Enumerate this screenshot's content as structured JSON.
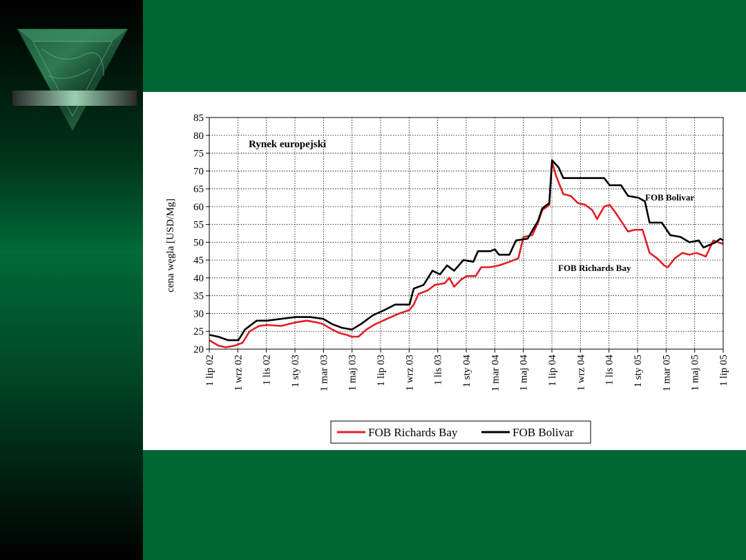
{
  "slide": {
    "colors": {
      "background": "#006633",
      "panel": "#ffffff",
      "accent": "#e31e24"
    },
    "logo_icon": "green-marble-triangle-icon"
  },
  "chart_data": {
    "type": "line",
    "title": "Rynek europejski",
    "xlabel": "",
    "ylabel": "cena węgla [USD/Mg]",
    "ylim": [
      20,
      85
    ],
    "yticks": [
      20,
      25,
      30,
      35,
      40,
      45,
      50,
      55,
      60,
      65,
      70,
      75,
      80,
      85
    ],
    "xticks": [
      "1 lip 02",
      "1 wrz 02",
      "1 lis 02",
      "1 sty 03",
      "1 mar 03",
      "1 maj 03",
      "1 lip 03",
      "1 wrz 03",
      "1 lis 03",
      "1 sty 04",
      "1 mar 04",
      "1 maj 04",
      "1 lip 04",
      "1 wrz 04",
      "1 lis 04",
      "1 sty 05",
      "1 mar 05",
      "1 maj 05",
      "1 lip 05"
    ],
    "grid": true,
    "legend_position": "bottom",
    "series": [
      {
        "name": "FOB Richards Bay",
        "color": "#e31e24",
        "label": "FOB Richards Bay",
        "points": [
          [
            "2002-07-01",
            22.5
          ],
          [
            "2002-07-20",
            21.0
          ],
          [
            "2002-08-05",
            20.5
          ],
          [
            "2002-08-25",
            21.0
          ],
          [
            "2002-09-10",
            21.8
          ],
          [
            "2002-09-25",
            25.0
          ],
          [
            "2002-10-15",
            26.5
          ],
          [
            "2002-11-01",
            26.8
          ],
          [
            "2002-12-01",
            26.5
          ],
          [
            "2003-01-01",
            27.5
          ],
          [
            "2003-01-25",
            28.0
          ],
          [
            "2003-02-15",
            27.5
          ],
          [
            "2003-03-01",
            27.0
          ],
          [
            "2003-03-20",
            25.5
          ],
          [
            "2003-04-05",
            24.5
          ],
          [
            "2003-04-20",
            24.0
          ],
          [
            "2003-05-01",
            23.5
          ],
          [
            "2003-05-15",
            23.5
          ],
          [
            "2003-06-01",
            25.5
          ],
          [
            "2003-06-20",
            27.0
          ],
          [
            "2003-07-15",
            28.5
          ],
          [
            "2003-08-10",
            30.0
          ],
          [
            "2003-09-01",
            31.0
          ],
          [
            "2003-09-10",
            32.5
          ],
          [
            "2003-09-20",
            35.5
          ],
          [
            "2003-10-10",
            36.5
          ],
          [
            "2003-10-25",
            38.0
          ],
          [
            "2003-11-15",
            38.5
          ],
          [
            "2003-11-25",
            40.0
          ],
          [
            "2003-12-05",
            37.5
          ],
          [
            "2003-12-20",
            39.5
          ],
          [
            "2004-01-01",
            40.5
          ],
          [
            "2004-01-20",
            40.5
          ],
          [
            "2004-02-01",
            43.0
          ],
          [
            "2004-02-20",
            43.0
          ],
          [
            "2004-03-10",
            43.5
          ],
          [
            "2004-04-01",
            44.5
          ],
          [
            "2004-04-20",
            45.5
          ],
          [
            "2004-05-01",
            51.5
          ],
          [
            "2004-05-20",
            52.0
          ],
          [
            "2004-06-01",
            55.5
          ],
          [
            "2004-06-10",
            59.0
          ],
          [
            "2004-06-25",
            60.5
          ],
          [
            "2004-07-01",
            72.5
          ],
          [
            "2004-07-10",
            68.5
          ],
          [
            "2004-07-25",
            63.5
          ],
          [
            "2004-08-10",
            63.0
          ],
          [
            "2004-08-25",
            61.0
          ],
          [
            "2004-09-10",
            60.5
          ],
          [
            "2004-09-25",
            59.0
          ],
          [
            "2004-10-05",
            56.5
          ],
          [
            "2004-10-20",
            60.0
          ],
          [
            "2004-11-01",
            60.5
          ],
          [
            "2004-11-15",
            58.0
          ],
          [
            "2004-12-10",
            53.0
          ],
          [
            "2004-12-25",
            53.5
          ],
          [
            "2005-01-10",
            53.5
          ],
          [
            "2005-01-25",
            47.0
          ],
          [
            "2005-02-10",
            45.5
          ],
          [
            "2005-02-25",
            43.5
          ],
          [
            "2005-03-05",
            43.0
          ],
          [
            "2005-03-20",
            45.5
          ],
          [
            "2005-04-05",
            47.0
          ],
          [
            "2005-04-20",
            46.5
          ],
          [
            "2005-05-05",
            47.0
          ],
          [
            "2005-05-25",
            46.0
          ],
          [
            "2005-06-10",
            50.5
          ],
          [
            "2005-06-20",
            50.0
          ],
          [
            "2005-07-01",
            49.5
          ]
        ]
      },
      {
        "name": "FOB Bolivar",
        "color": "#000000",
        "label": "FOB Bolivar",
        "points": [
          [
            "2002-07-01",
            24.0
          ],
          [
            "2002-07-20",
            23.5
          ],
          [
            "2002-08-10",
            22.5
          ],
          [
            "2002-09-01",
            22.5
          ],
          [
            "2002-09-15",
            25.5
          ],
          [
            "2002-10-10",
            28.0
          ],
          [
            "2002-11-01",
            28.0
          ],
          [
            "2002-12-01",
            28.5
          ],
          [
            "2003-01-01",
            29.0
          ],
          [
            "2003-02-01",
            29.0
          ],
          [
            "2003-03-01",
            28.5
          ],
          [
            "2003-03-20",
            27.0
          ],
          [
            "2003-04-10",
            26.0
          ],
          [
            "2003-05-01",
            25.5
          ],
          [
            "2003-05-20",
            27.0
          ],
          [
            "2003-06-15",
            29.5
          ],
          [
            "2003-07-10",
            31.0
          ],
          [
            "2003-08-01",
            32.5
          ],
          [
            "2003-09-01",
            32.5
          ],
          [
            "2003-09-10",
            37.0
          ],
          [
            "2003-10-01",
            38.0
          ],
          [
            "2003-10-20",
            42.0
          ],
          [
            "2003-11-05",
            41.0
          ],
          [
            "2003-11-20",
            43.5
          ],
          [
            "2003-12-05",
            42.0
          ],
          [
            "2003-12-25",
            45.0
          ],
          [
            "2004-01-15",
            44.5
          ],
          [
            "2004-01-25",
            47.5
          ],
          [
            "2004-02-20",
            47.5
          ],
          [
            "2004-03-01",
            48.0
          ],
          [
            "2004-03-10",
            46.5
          ],
          [
            "2004-04-01",
            46.5
          ],
          [
            "2004-04-15",
            50.5
          ],
          [
            "2004-05-10",
            51.0
          ],
          [
            "2004-06-01",
            56.0
          ],
          [
            "2004-06-10",
            59.5
          ],
          [
            "2004-06-25",
            61.0
          ],
          [
            "2004-07-01",
            73.0
          ],
          [
            "2004-07-15",
            71.0
          ],
          [
            "2004-07-25",
            68.0
          ],
          [
            "2004-10-20",
            68.0
          ],
          [
            "2004-11-01",
            66.0
          ],
          [
            "2004-11-25",
            66.0
          ],
          [
            "2004-12-10",
            63.0
          ],
          [
            "2005-01-01",
            62.5
          ],
          [
            "2005-01-15",
            61.5
          ],
          [
            "2005-01-25",
            55.5
          ],
          [
            "2005-02-20",
            55.5
          ],
          [
            "2005-03-10",
            52.0
          ],
          [
            "2005-04-01",
            51.5
          ],
          [
            "2005-04-20",
            50.0
          ],
          [
            "2005-05-10",
            50.5
          ],
          [
            "2005-05-20",
            48.5
          ],
          [
            "2005-06-15",
            50.0
          ],
          [
            "2005-06-25",
            51.0
          ],
          [
            "2005-07-01",
            50.5
          ]
        ]
      }
    ]
  }
}
